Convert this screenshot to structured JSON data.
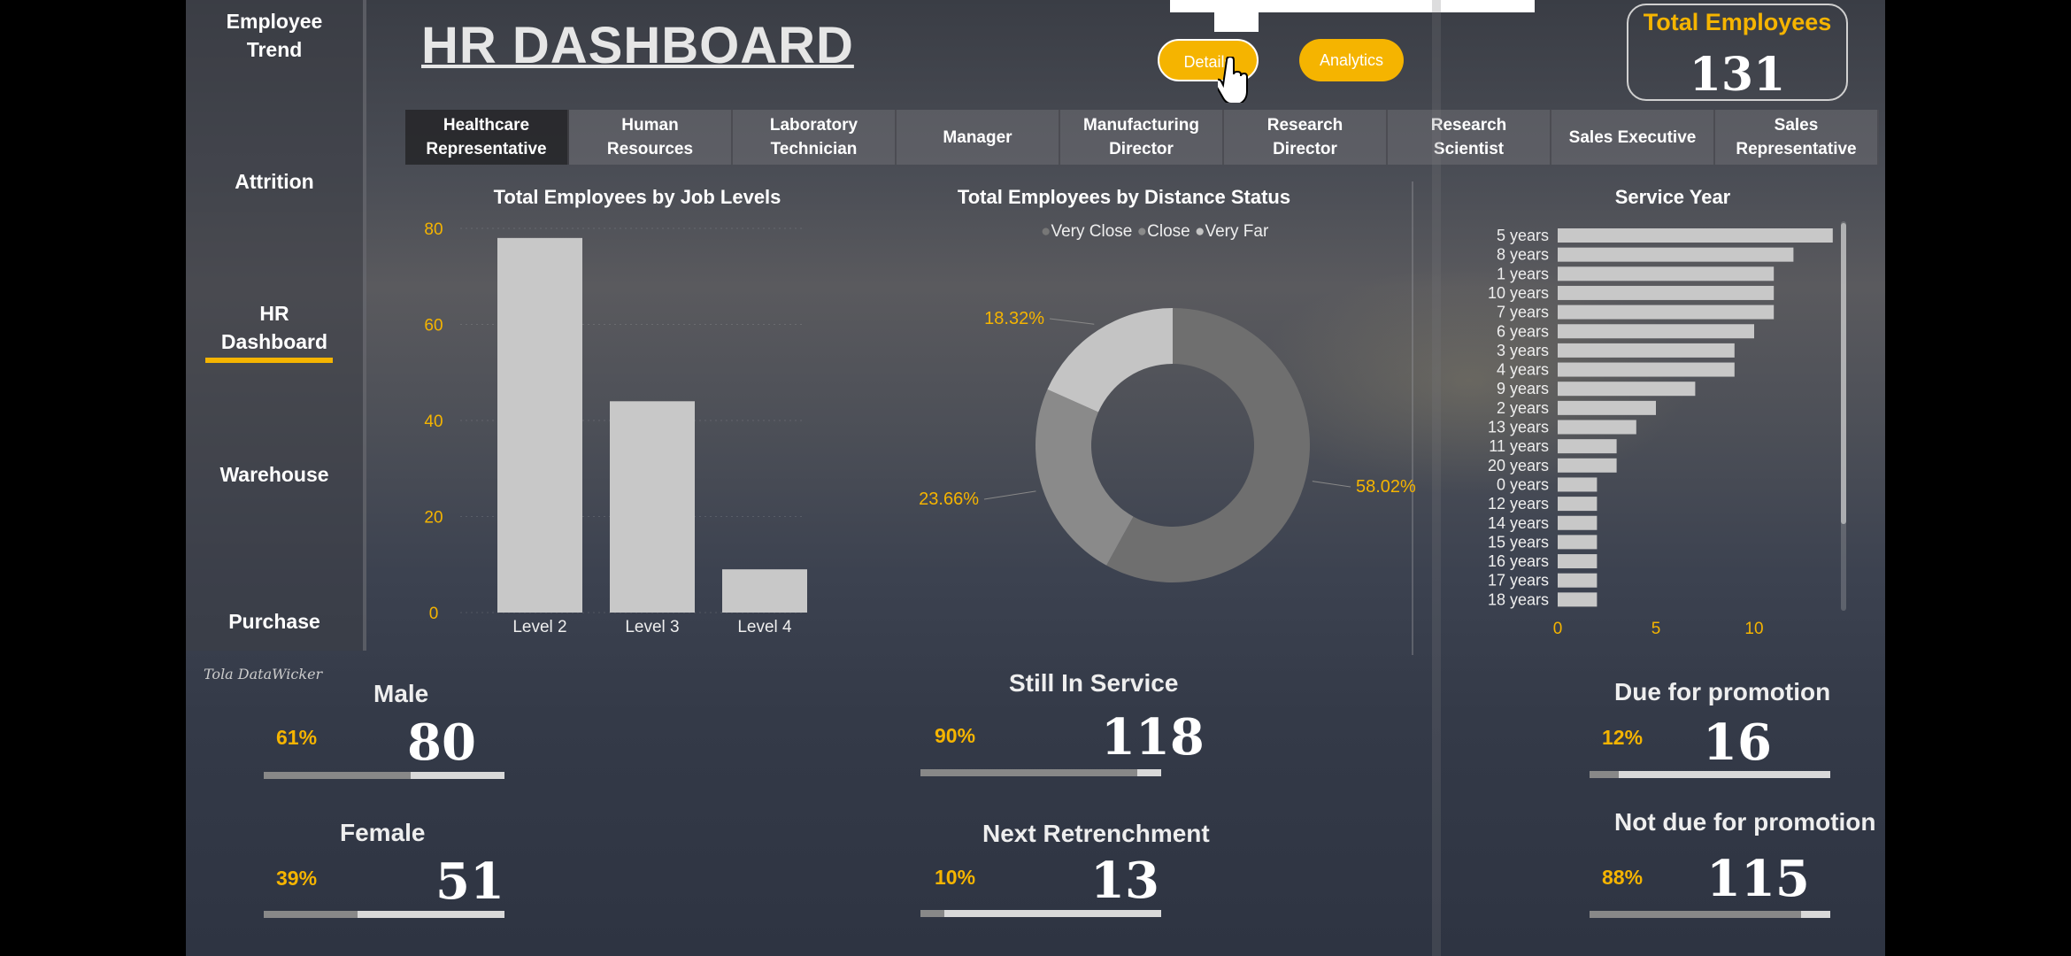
{
  "sidebar": {
    "items": [
      {
        "label_l1": "Employee",
        "label_l2": "Trend"
      },
      {
        "label_l1": "Attrition",
        "label_l2": ""
      },
      {
        "label_l1": "HR",
        "label_l2": "Dashboard"
      },
      {
        "label_l1": "Warehouse",
        "label_l2": ""
      },
      {
        "label_l1": "Purchase",
        "label_l2": ""
      }
    ],
    "active": "HR Dashboard"
  },
  "header": {
    "title": "HR DASHBOARD",
    "details_label": "Details",
    "analytics_label": "Analytics",
    "total_label": "Total Employees",
    "total_value": "131"
  },
  "tabs": [
    {
      "l1": "Healthcare",
      "l2": "Representative"
    },
    {
      "l1": "Human",
      "l2": "Resources"
    },
    {
      "l1": "Laboratory",
      "l2": "Technician"
    },
    {
      "l1": "Manager",
      "l2": ""
    },
    {
      "l1": "Manufacturing",
      "l2": "Director"
    },
    {
      "l1": "Research",
      "l2": "Director"
    },
    {
      "l1": "Research",
      "l2": "Scientist"
    },
    {
      "l1": "Sales Executive",
      "l2": ""
    },
    {
      "l1": "Sales",
      "l2": "Representative"
    }
  ],
  "colors": {
    "accent": "#f5b400",
    "bar": "#c8c8c8",
    "donut_very_close": "#6f6f6f",
    "donut_close": "#8a8a8a",
    "donut_very_far": "#c4c4c4"
  },
  "chart_data": [
    {
      "type": "bar",
      "title": "Total Employees by Job Levels",
      "categories": [
        "Level 2",
        "Level 3",
        "Level 4"
      ],
      "values": [
        78,
        44,
        9
      ],
      "yticks": [
        "0",
        "20",
        "40",
        "60",
        "80"
      ],
      "ylim": [
        0,
        80
      ],
      "grid": true
    },
    {
      "type": "pie",
      "title": "Total Employees by Distance Status",
      "labels": [
        "Very Close",
        "Close",
        "Very Far"
      ],
      "values": [
        58.02,
        23.66,
        18.32
      ],
      "value_labels": [
        "58.02%",
        "23.66%",
        "18.32%"
      ],
      "legend": "top",
      "donut": true
    },
    {
      "type": "bar",
      "orientation": "horizontal",
      "title": "Service Year",
      "categories": [
        "5 years",
        "8 years",
        "1 years",
        "10 years",
        "7 years",
        "6 years",
        "3 years",
        "4 years",
        "9 years",
        "2 years",
        "13 years",
        "11 years",
        "20 years",
        "0 years",
        "12 years",
        "14 years",
        "15 years",
        "16 years",
        "17 years",
        "18 years"
      ],
      "values": [
        14,
        12,
        11,
        11,
        11,
        10,
        9,
        9,
        7,
        5,
        4,
        3,
        3,
        2,
        2,
        2,
        2,
        2,
        2,
        2
      ],
      "xticks": [
        "0",
        "5",
        "10"
      ],
      "xlim": [
        0,
        14
      ]
    }
  ],
  "kpis": {
    "male": {
      "label": "Male",
      "pct": "61%",
      "value": "80",
      "fraction": 0.61
    },
    "female": {
      "label": "Female",
      "pct": "39%",
      "value": "51",
      "fraction": 0.39
    },
    "still": {
      "label": "Still In Service",
      "pct": "90%",
      "value": "118",
      "fraction": 0.9
    },
    "retrench": {
      "label": "Next Retrenchment",
      "pct": "10%",
      "value": "13",
      "fraction": 0.1
    },
    "due": {
      "label": "Due for promotion",
      "pct": "12%",
      "value": "16",
      "fraction": 0.12
    },
    "notdue": {
      "label": "Not due for promotion",
      "pct": "88%",
      "value": "115",
      "fraction": 0.88
    }
  }
}
